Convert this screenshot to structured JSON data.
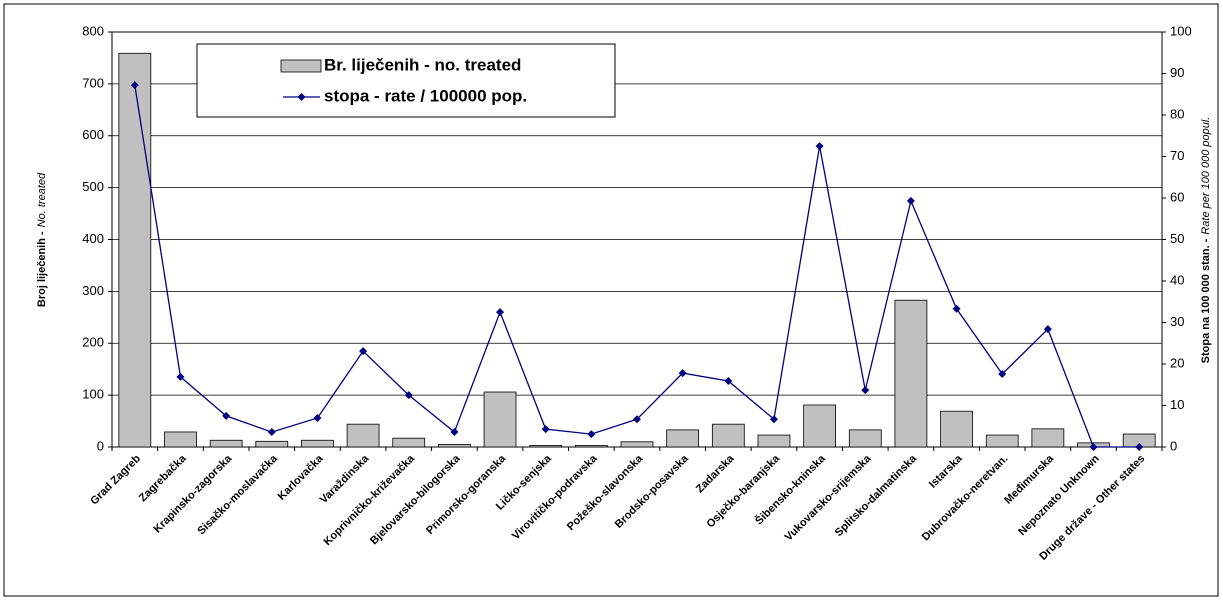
{
  "chart_data": {
    "type": "bar",
    "categories": [
      "Grad Zagreb",
      "Zagrebačka",
      "Krapinsko-zagorska",
      "Sisačko-moslavačka",
      "Karlovačka",
      "Varaždinska",
      "Koprivničko-križevačka",
      "Bjelovarsko-bilogorska",
      "Primorsko-goranska",
      "Ličko-senjska",
      "Virovitičko-podravska",
      "Požeško-slavonska",
      "Brodsko-posavska",
      "Zadarska",
      "Osječko-baranjska",
      "Šibensko-kninska",
      "Vukovarsko-srijemska",
      "Splitsko-dalmatinska",
      "Istarska",
      "Dubrovačko-neretvan.",
      "Međimurska",
      "Nepoznato Unknown",
      "Druge države - Other states"
    ],
    "series": [
      {
        "name": "Br. liječenih - no. treated",
        "type": "bar",
        "color": "#c0c0c0",
        "values": [
          759,
          29,
          13,
          11,
          13,
          44,
          17,
          5,
          106,
          3,
          3,
          10,
          33,
          44,
          23,
          81,
          33,
          283,
          69,
          23,
          35,
          8,
          25
        ]
      },
      {
        "name": "stopa - rate / 100000 pop.",
        "type": "line",
        "axis": "y2",
        "color": "#000080",
        "values": [
          87.2,
          16.9,
          7.5,
          3.6,
          7,
          23.1,
          12.5,
          3.6,
          32.5,
          4.3,
          3.1,
          6.7,
          17.8,
          15.9,
          6.7,
          72.5,
          13.7,
          59.3,
          33.3,
          17.6,
          28.4,
          0,
          0
        ]
      }
    ],
    "y_label": {
      "main": "Broj liječenih -",
      "sub": "No. treated"
    },
    "y2_label": {
      "main": "Stopa na 100 000 stan. -",
      "sub": "Rate per 100 000 popul."
    },
    "ylim": [
      0,
      800
    ],
    "yticks": [
      0,
      100,
      200,
      300,
      400,
      500,
      600,
      700,
      800
    ],
    "y2lim": [
      0,
      100
    ],
    "y2ticks": [
      0,
      10,
      20,
      30,
      40,
      50,
      60,
      70,
      80,
      90,
      100
    ],
    "grid": true
  }
}
